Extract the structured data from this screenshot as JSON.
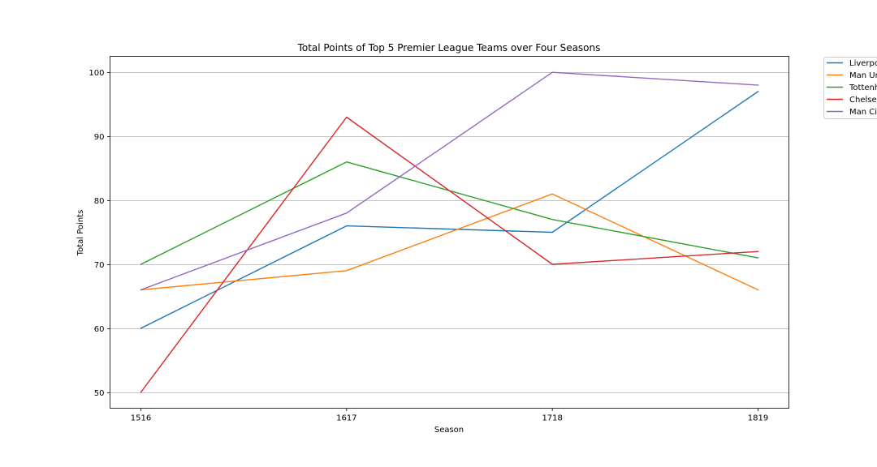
{
  "chart_data": {
    "type": "line",
    "title": "Total Points of Top 5 Premier League Teams over Four Seasons",
    "xlabel": "Season",
    "ylabel": "Total Points",
    "categories": [
      "1516",
      "1617",
      "1718",
      "1819"
    ],
    "ylim": [
      47.5,
      102.5
    ],
    "yticks": [
      50,
      60,
      70,
      80,
      90,
      100
    ],
    "grid": "y",
    "legend_position": "outside-top-right",
    "series": [
      {
        "name": "Liverpool",
        "color": "#1f77b4",
        "values": [
          60,
          76,
          75,
          97
        ]
      },
      {
        "name": "Man United",
        "color": "#ff7f0e",
        "values": [
          66,
          69,
          81,
          66
        ]
      },
      {
        "name": "Tottenham",
        "color": "#2ca02c",
        "values": [
          70,
          86,
          77,
          71
        ]
      },
      {
        "name": "Chelsea",
        "color": "#d62728",
        "values": [
          50,
          93,
          70,
          72
        ]
      },
      {
        "name": "Man City",
        "color": "#9467bd",
        "values": [
          66,
          78,
          100,
          98
        ]
      }
    ]
  }
}
